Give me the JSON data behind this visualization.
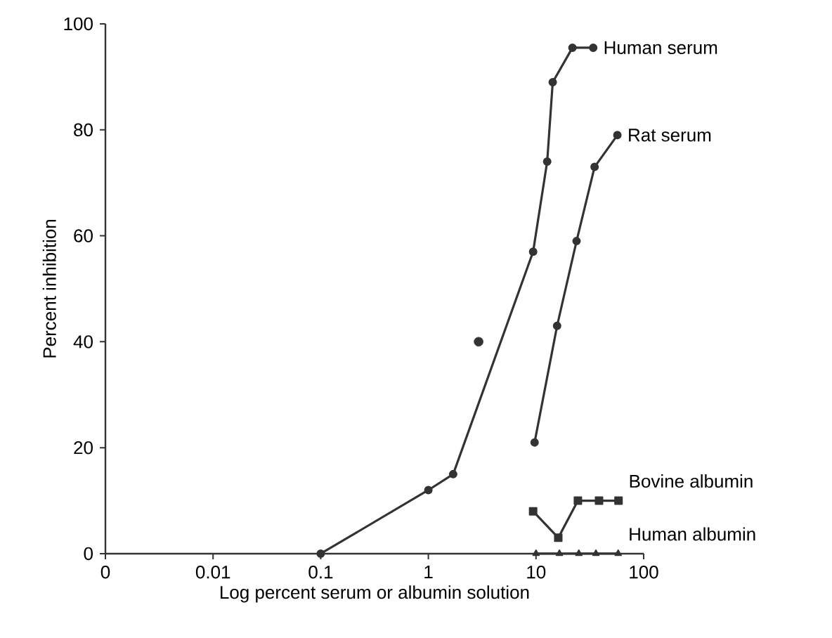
{
  "chart_data": {
    "type": "line",
    "xlabel": "Log percent serum or albumin solution",
    "ylabel": "Percent inhibition",
    "log": "x",
    "xlim": [
      0.001,
      100
    ],
    "ylim": [
      0,
      100
    ],
    "xticks": [
      {
        "value": 0.001,
        "label": "0"
      },
      0.01,
      0.1,
      1,
      10,
      100
    ],
    "yticks": [
      0,
      20,
      40,
      60,
      80,
      100
    ],
    "grid": false,
    "series": [
      {
        "name": "Human serum",
        "color": "#333333",
        "marker": "circle",
        "x": [
          0.1,
          1,
          1.7,
          9.4,
          12.7,
          14.3,
          21.8,
          34
        ],
        "values": [
          0,
          12,
          15,
          57,
          74,
          89,
          95.5,
          95.5
        ]
      },
      {
        "name": "Rat serum",
        "color": "#333333",
        "marker": "circle",
        "x": [
          9.7,
          15.7,
          23.8,
          35,
          57
        ],
        "values": [
          21,
          43,
          59,
          73,
          79
        ]
      },
      {
        "name": "Bovine albumin",
        "color": "#333333",
        "marker": "square",
        "x": [
          9.4,
          16.1,
          24.5,
          38.5,
          58.4
        ],
        "values": [
          8,
          3,
          10,
          10,
          10
        ]
      },
      {
        "name": "Human albumin",
        "color": "#333333",
        "marker": "triangle",
        "x": [
          10,
          16.5,
          25,
          36,
          58
        ],
        "values": [
          0,
          0,
          0,
          0,
          0
        ]
      },
      {
        "type": "scatter",
        "color": "#333333",
        "marker": "circle",
        "x": [
          2.93
        ],
        "values": [
          40
        ]
      }
    ]
  }
}
